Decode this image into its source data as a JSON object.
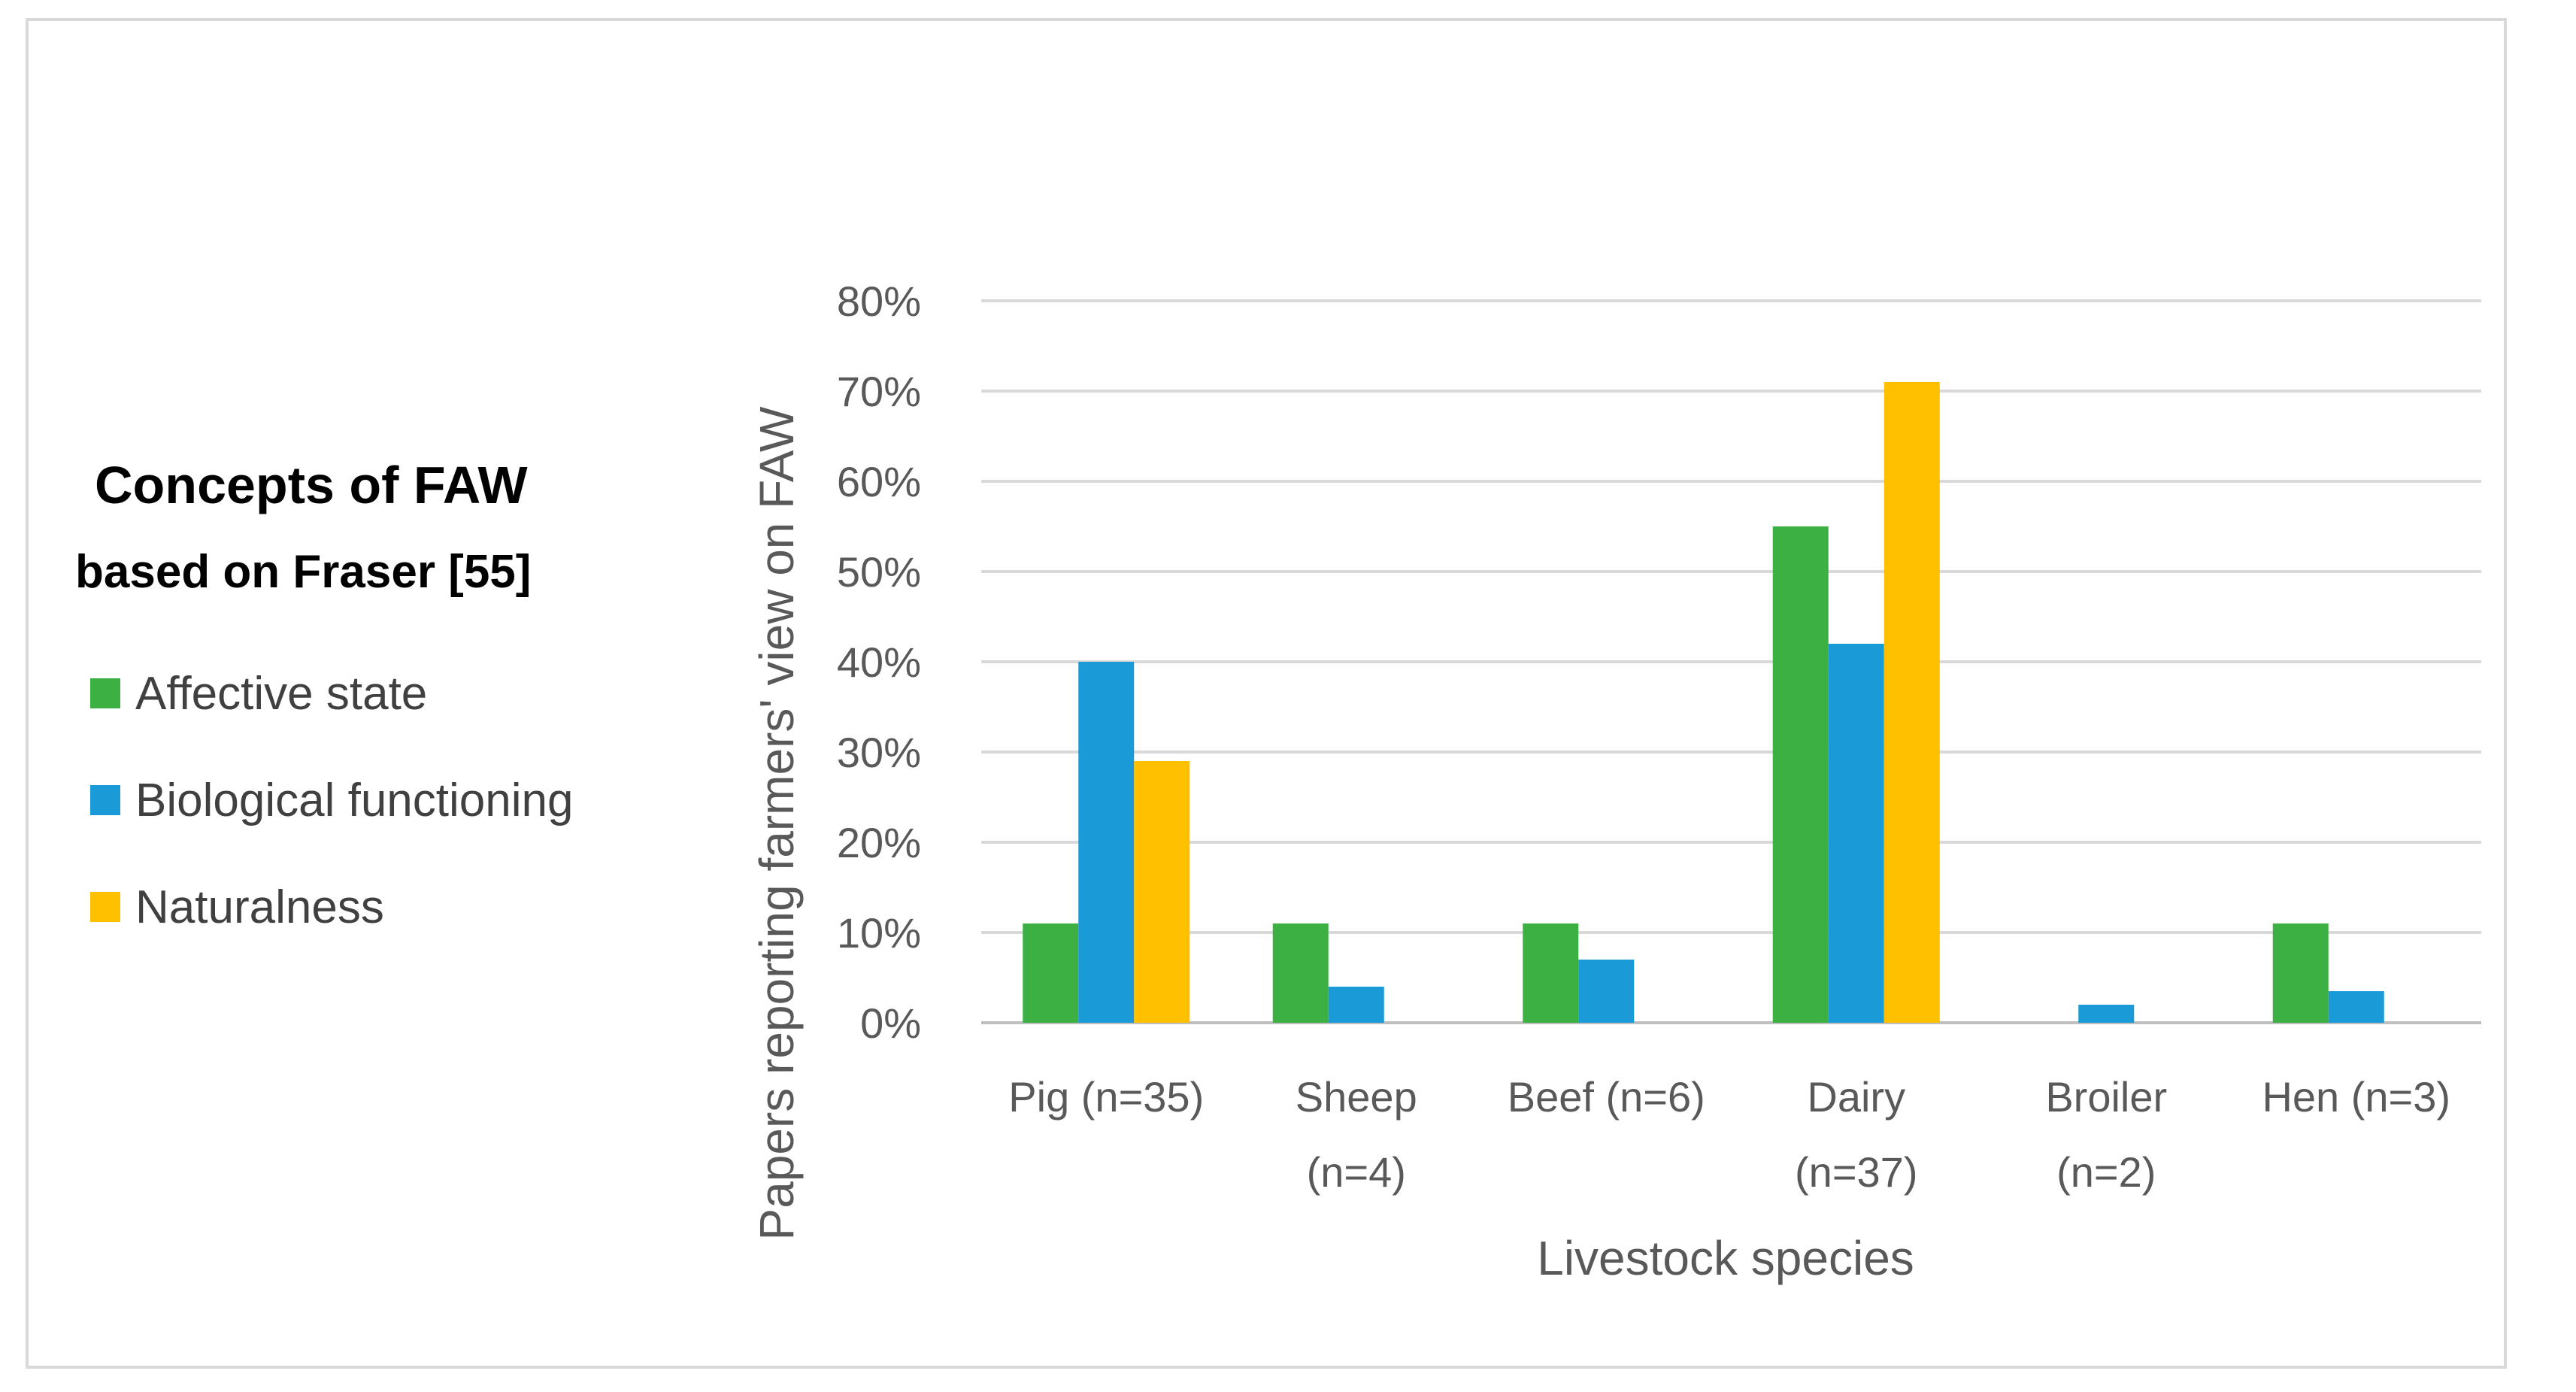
{
  "chart_data": {
    "type": "bar",
    "title": "",
    "categories": [
      [
        "Pig (n=35)"
      ],
      [
        "Sheep",
        "(n=4)"
      ],
      [
        "Beef (n=6)"
      ],
      [
        "Dairy",
        "(n=37)"
      ],
      [
        "Broiler",
        "(n=2)"
      ],
      [
        "Hen (n=3)"
      ]
    ],
    "series": [
      {
        "name": "Affective state",
        "color": "#3cb043",
        "values": [
          0.11,
          0.11,
          0.11,
          0.55,
          0.0,
          0.11
        ]
      },
      {
        "name": "Biological functioning",
        "color": "#1a9ad6",
        "values": [
          0.4,
          0.04,
          0.07,
          0.42,
          0.02,
          0.035
        ]
      },
      {
        "name": "Naturalness",
        "color": "#ffc000",
        "values": [
          0.29,
          0.0,
          0.0,
          0.71,
          0.0,
          0.0
        ]
      }
    ],
    "xlabel": "Livestock species",
    "ylabel": "Papers reporting farmers' view on FAW",
    "ylim": [
      0,
      0.8
    ],
    "yticks": [
      0,
      0.1,
      0.2,
      0.3,
      0.4,
      0.5,
      0.6,
      0.7,
      0.8
    ],
    "yticklabels": [
      "0%",
      "10%",
      "20%",
      "30%",
      "40%",
      "50%",
      "60%",
      "70%",
      "80%"
    ],
    "grid": true,
    "legend": {
      "title_line1": "Concepts of FAW",
      "title_line2": "based on Fraser [55]",
      "placement": "left"
    }
  }
}
